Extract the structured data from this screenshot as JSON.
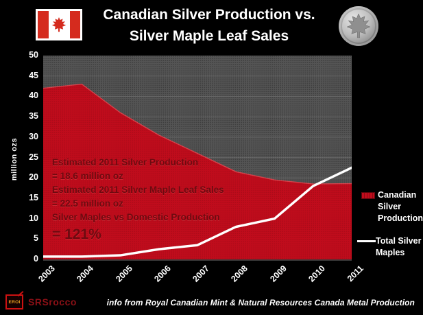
{
  "header": {
    "title_line1": "Canadian Silver Production vs.",
    "title_line2": "Silver Maple Leaf Sales"
  },
  "chart_data": {
    "type": "area",
    "title": "Canadian Silver Production vs. Silver Maple Leaf Sales",
    "categories": [
      "2003",
      "2004",
      "2005",
      "2006",
      "2007",
      "2008",
      "2009",
      "2010",
      "2011"
    ],
    "series": [
      {
        "name": "Canadian Silver Production",
        "type": "area",
        "color": "#c00c1c",
        "values": [
          42,
          43,
          36,
          30.5,
          26,
          21.5,
          19.5,
          18.5,
          18.6
        ]
      },
      {
        "name": "Total Silver Maples",
        "type": "line",
        "color": "#ffffff",
        "values": [
          0.7,
          0.7,
          1.0,
          2.5,
          3.5,
          8,
          10,
          18,
          22.5
        ]
      }
    ],
    "ylabel": "million ozs",
    "ylim": [
      0,
      50
    ],
    "ytick_step": 5,
    "grid": true,
    "legend_position": "right",
    "plot_background": "#545454",
    "gridline_color": "#757575"
  },
  "annotation": {
    "lines": [
      "Estimated 2011 Silver Production",
      "= 18.6 million oz",
      "Estimated 2011 Silver Maple Leaf Sales",
      "= 22.5 million oz",
      "Silver Maples vs Domestic Production"
    ],
    "highlight": "= 121%"
  },
  "footer": {
    "logo_box_text": "EROI",
    "logo_text": "SRSrocco",
    "info_text": "info from Royal Canadian Mint & Natural Resources Canada Metal Production"
  },
  "colors": {
    "background": "#000000",
    "production_area": "#c00c1c",
    "maples_line": "#ffffff",
    "annotation_text": "#6e0a10",
    "flag_red": "#d52b1e",
    "logo_red": "#8b1016"
  }
}
